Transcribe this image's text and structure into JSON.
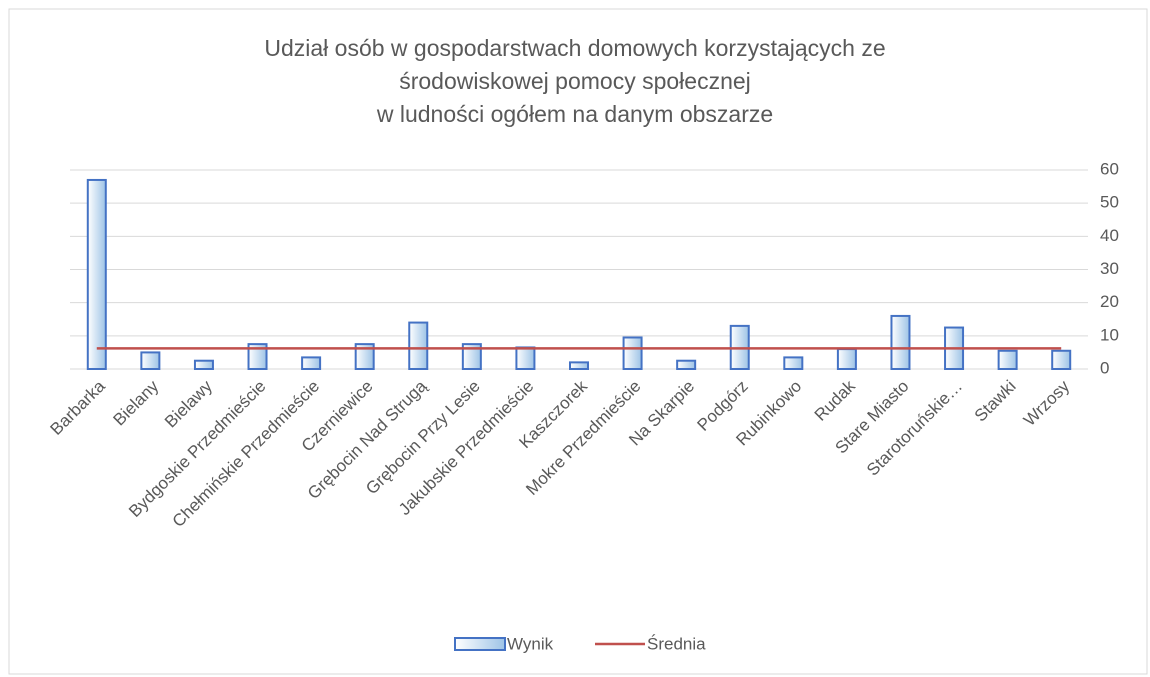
{
  "chart_data": {
    "type": "bar",
    "title": [
      "Udział osób w gospodarstwach domowych korzystających ze",
      "środowiskowej pomocy społecznej",
      "w ludności ogółem na danym obszarze"
    ],
    "categories": [
      "Barbarka",
      "Bielany",
      "Bielawy",
      "Bydgoskie Przedmieście",
      "Chełmińskie Przedmieście",
      "Czerniewice",
      "Grębocin Nad Strugą",
      "Grębocin Przy Lesie",
      "Jakubskie Przedmieście",
      "Kaszczorek",
      "Mokre Przedmieście",
      "Na Skarpie",
      "Podgórz",
      "Rubinkowo",
      "Rudak",
      "Stare Miasto",
      "Starotoruńskie…",
      "Stawki",
      "Wrzosy"
    ],
    "series": [
      {
        "name": "Wynik",
        "color": "#4472c4",
        "values": [
          57,
          5,
          2.5,
          7.5,
          3.5,
          7.5,
          14,
          7.5,
          6.5,
          2,
          9.5,
          2.5,
          13,
          3.5,
          6,
          16,
          12.5,
          5.5,
          5.5
        ]
      },
      {
        "name": "Średnia",
        "color": "#c0504d",
        "type": "line",
        "values": [
          6.2,
          6.2,
          6.2,
          6.2,
          6.2,
          6.2,
          6.2,
          6.2,
          6.2,
          6.2,
          6.2,
          6.2,
          6.2,
          6.2,
          6.2,
          6.2,
          6.2,
          6.2,
          6.2
        ]
      }
    ],
    "ylim": [
      0,
      60
    ],
    "yticks": [
      0,
      10,
      20,
      30,
      40,
      50,
      60
    ],
    "grid": true,
    "legend": "bottom"
  }
}
